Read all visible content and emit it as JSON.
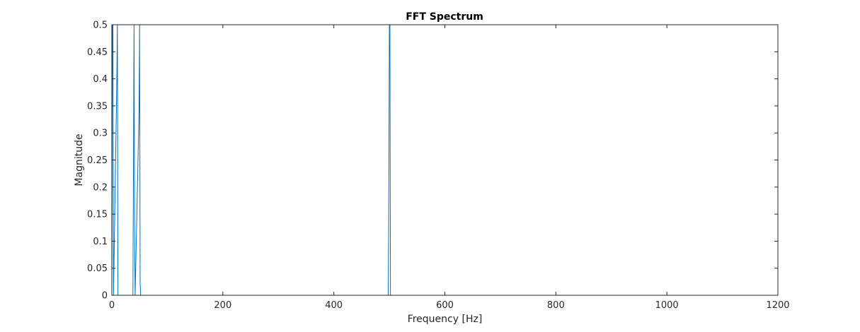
{
  "chart_data": {
    "type": "line",
    "title": "FFT Spectrum",
    "xlabel": "Frequency [Hz]",
    "ylabel": "Magnitude",
    "xlim": [
      0,
      1200
    ],
    "ylim": [
      0,
      0.5
    ],
    "grid": false,
    "legend": "none",
    "x_ticks": [
      0,
      200,
      400,
      600,
      800,
      1000,
      1200
    ],
    "x_tick_labels": [
      "0",
      "200",
      "400",
      "600",
      "800",
      "1000",
      "1200"
    ],
    "y_ticks": [
      0,
      0.05,
      0.1,
      0.15,
      0.2,
      0.25,
      0.3,
      0.35,
      0.4,
      0.45,
      0.5
    ],
    "y_tick_labels": [
      "0",
      "0.05",
      "0.1",
      "0.15",
      "0.2",
      "0.25",
      "0.3",
      "0.35",
      "0.4",
      "0.45",
      "0.5"
    ],
    "series": [
      {
        "color": "#0072BD",
        "x": [
          0,
          1,
          2,
          3,
          9,
          10,
          11,
          38,
          39,
          40,
          41,
          42,
          49,
          50,
          51,
          52,
          53,
          498,
          499,
          500,
          501,
          502,
          1024
        ],
        "y": [
          0,
          0.5,
          0.5,
          0,
          0.4,
          0.5,
          0,
          0,
          0.245,
          0.5,
          0.118,
          0,
          0.34,
          0.5,
          0.022,
          0,
          0,
          0,
          0.18,
          0.5,
          0.5,
          0,
          0
        ]
      }
    ]
  }
}
